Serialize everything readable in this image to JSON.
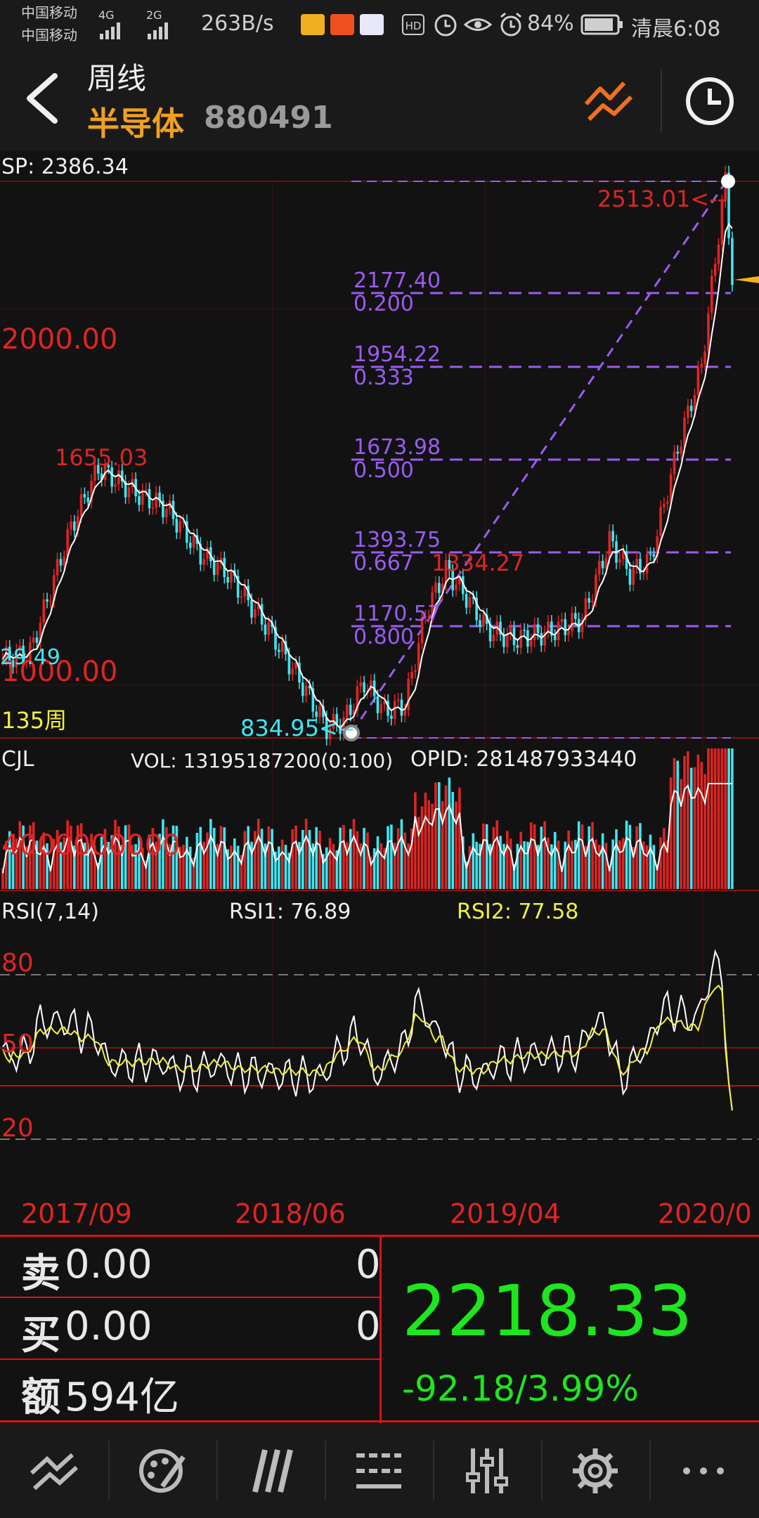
{
  "status_bar": {
    "carrier1": "中国移动",
    "carrier2": "中国移动",
    "signal1": "4G",
    "signal2": "2G",
    "net_speed": "263B/s",
    "hd": "HD",
    "battery": "84%",
    "time": "清晨6:08"
  },
  "header": {
    "period": "周线",
    "name": "半导体",
    "code": "880491"
  },
  "chart": {
    "sp_label": "SP: 2386.34",
    "y_2000": "2000.00",
    "y_1000": "1000.00",
    "left_low": "29.49",
    "weeks": "135周",
    "high_label": "1655.03",
    "low_label": "834.95<--",
    "top_label": "2513.01<--",
    "mid_high": "1334.27",
    "fib": [
      {
        "price": "2177.40",
        "ratio": "0.200"
      },
      {
        "price": "1954.22",
        "ratio": "0.333"
      },
      {
        "price": "1673.98",
        "ratio": "0.500"
      },
      {
        "price": "1393.75",
        "ratio": "0.667"
      },
      {
        "price": "1170.57",
        "ratio": "0.800"
      }
    ]
  },
  "volume": {
    "title": "CJL",
    "vol": "VOL: 13195187200(0:100)",
    "opid": "OPID: 281487933440",
    "axis_label": "4000000000"
  },
  "rsi": {
    "title": "RSI(7,14)",
    "rsi1": "RSI1: 76.89",
    "rsi2": "RSI2: 77.58",
    "lvl80": "80",
    "lvl50": "50",
    "lvl20": "20"
  },
  "dates": [
    "2017/09",
    "2018/06",
    "2019/04",
    "2020/0"
  ],
  "quote": {
    "sell_label": "卖",
    "sell_price": "0.00",
    "sell_qty": "0",
    "buy_label": "买",
    "buy_price": "0.00",
    "buy_qty": "0",
    "amount_label": "额",
    "amount": "594亿",
    "price": "2218.33",
    "change": "-92.18/3.99%"
  },
  "colors": {
    "up": "#e02424",
    "down": "#3ee6f0",
    "fib": "#9a5cf0",
    "price_green": "#1ee61e",
    "accent": "#f0a020"
  },
  "toolbar": [
    "draw-line-icon",
    "palette-icon",
    "triple-slash-icon",
    "list-lines-icon",
    "sliders-icon",
    "gear-icon",
    "more-icon"
  ]
}
